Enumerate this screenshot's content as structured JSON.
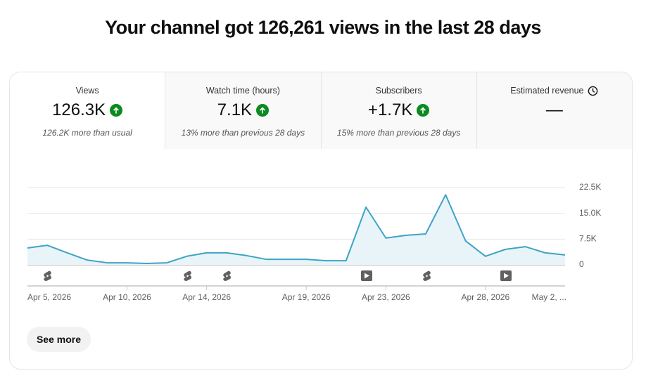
{
  "header": {
    "title": "Your channel got 126,261 views in the last 28 days"
  },
  "tabs": [
    {
      "label": "Views",
      "value": "126.3K",
      "note": "126.2K more than usual"
    },
    {
      "label": "Watch time (hours)",
      "value": "7.1K",
      "note": "13% more than previous 28 days"
    },
    {
      "label": "Subscribers",
      "value": "+1.7K",
      "note": "15% more than previous 28 days"
    },
    {
      "label": "Estimated revenue",
      "value": "—"
    }
  ],
  "chart_data": {
    "type": "area",
    "categories": [
      "Apr 5, 2026",
      null,
      null,
      null,
      null,
      "Apr 10, 2026",
      null,
      null,
      null,
      "Apr 14, 2026",
      null,
      null,
      null,
      null,
      "Apr 19, 2026",
      null,
      null,
      null,
      "Apr 23, 2026",
      null,
      null,
      null,
      null,
      "Apr 28, 2026",
      null,
      null,
      null,
      "May 2, ..."
    ],
    "values": [
      4900,
      5700,
      3500,
      1400,
      600,
      600,
      400,
      600,
      2500,
      3500,
      3500,
      2700,
      1600,
      1600,
      1600,
      1200,
      1200,
      16800,
      7800,
      8600,
      9000,
      20400,
      7000,
      2500,
      4500,
      5300,
      3500,
      2900
    ],
    "color": "#3ea3c6",
    "ylim": [
      0,
      22500
    ],
    "yticks": [
      0,
      {
        "value": 7500,
        "label": "7.5K"
      },
      {
        "value": 15000,
        "label": "15.0K"
      },
      {
        "value": 22500,
        "label": "22.5K"
      }
    ],
    "grid": true
  },
  "button": {
    "label": "See more"
  }
}
